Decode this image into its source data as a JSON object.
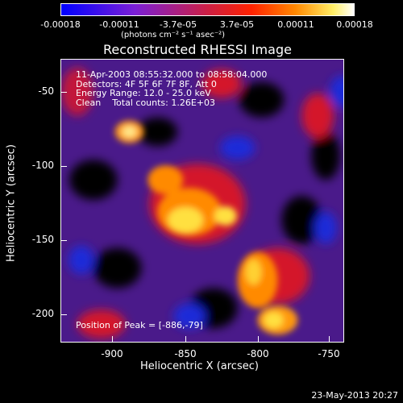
{
  "colorbar": {
    "tick_labels": [
      "-0.00018",
      "-0.00011",
      "-3.7e-05",
      "3.7e-05",
      "0.00011",
      "0.00018"
    ],
    "units_text": "(photons cm⁻² s⁻¹ asec⁻²)",
    "colors": [
      "#0000ff",
      "#8a2be2",
      "#cc2255",
      "#ff2200",
      "#ff8800",
      "#ffff88",
      "#ffffff"
    ]
  },
  "plot": {
    "title": "Reconstructed RHESSI Image",
    "info_lines": [
      "11-Apr-2003 08:55:32.000 to 08:58:04.000",
      "Detectors: 4F 5F 6F 7F 8F, Att 0",
      "Energy Range: 12.0 - 25.0 keV",
      "Clean    Total counts: 1.26E+03"
    ],
    "peak_text": "Position of Peak = [-886,-79]",
    "y_tick_labels": [
      "-50",
      "-100",
      "-150",
      "-200"
    ],
    "x_tick_labels": [
      "-900",
      "-850",
      "-800",
      "-750"
    ],
    "y_label": "Heliocentric Y (arcsec)",
    "x_label": "Heliocentric X (arcsec)"
  },
  "footer": {
    "date": "23-May-2013 20:27"
  }
}
